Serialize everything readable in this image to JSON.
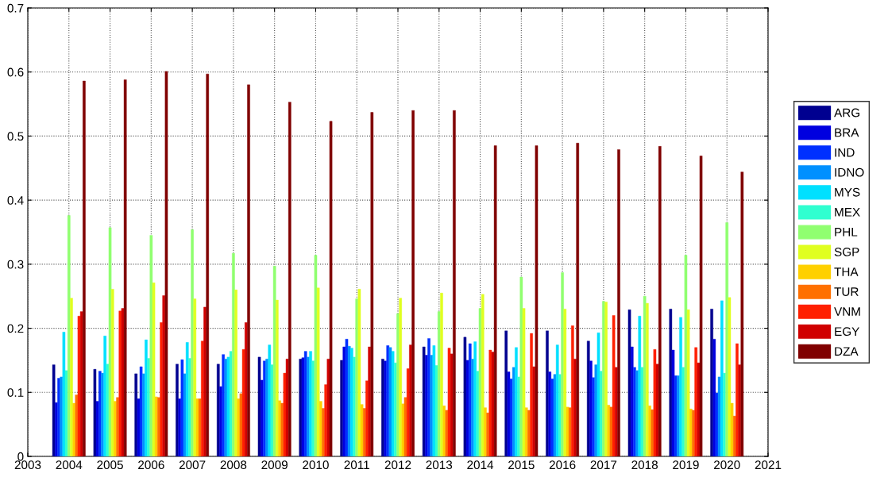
{
  "chart_data": {
    "type": "bar",
    "x": [
      2004,
      2005,
      2006,
      2007,
      2008,
      2009,
      2010,
      2011,
      2012,
      2013,
      2014,
      2015,
      2016,
      2017,
      2018,
      2019,
      2020
    ],
    "series": [
      {
        "name": "ARG",
        "color": "#000090",
        "values": [
          0.143,
          0.136,
          0.129,
          0.144,
          0.144,
          0.155,
          0.152,
          0.15,
          0.152,
          0.171,
          0.186,
          0.196,
          0.196,
          0.18,
          0.229,
          0.23,
          0.23
        ]
      },
      {
        "name": "BRA",
        "color": "#0000df",
        "values": [
          0.084,
          0.086,
          0.09,
          0.09,
          0.109,
          0.119,
          0.154,
          0.171,
          0.149,
          0.158,
          0.15,
          0.132,
          0.132,
          0.149,
          0.171,
          0.166,
          0.183
        ]
      },
      {
        "name": "IND",
        "color": "#0030ff",
        "values": [
          0.122,
          0.133,
          0.14,
          0.151,
          0.159,
          0.149,
          0.164,
          0.183,
          0.173,
          0.184,
          0.176,
          0.121,
          0.121,
          0.123,
          0.139,
          0.126,
          0.099
        ]
      },
      {
        "name": "IDNO",
        "color": "#0090ff",
        "values": [
          0.124,
          0.13,
          0.129,
          0.129,
          0.152,
          0.152,
          0.155,
          0.172,
          0.17,
          0.158,
          0.152,
          0.139,
          0.128,
          0.143,
          0.134,
          0.126,
          0.124
        ]
      },
      {
        "name": "MYS",
        "color": "#00e0ff",
        "values": [
          0.194,
          0.188,
          0.182,
          0.178,
          0.155,
          0.174,
          0.164,
          0.169,
          0.164,
          0.173,
          0.179,
          0.17,
          0.174,
          0.193,
          0.219,
          0.217,
          0.243
        ]
      },
      {
        "name": "MEX",
        "color": "#30ffd0",
        "values": [
          0.134,
          0.144,
          0.153,
          0.153,
          0.164,
          0.143,
          0.149,
          0.155,
          0.146,
          0.142,
          0.133,
          0.124,
          0.128,
          0.133,
          0.139,
          0.139,
          0.13
        ]
      },
      {
        "name": "PHL",
        "color": "#90ff70",
        "values": [
          0.376,
          0.357,
          0.345,
          0.354,
          0.317,
          0.297,
          0.314,
          0.246,
          0.223,
          0.226,
          0.231,
          0.28,
          0.287,
          0.242,
          0.25,
          0.314,
          0.365
        ]
      },
      {
        "name": "SGP",
        "color": "#e0ff20",
        "values": [
          0.247,
          0.261,
          0.271,
          0.246,
          0.26,
          0.244,
          0.263,
          0.261,
          0.247,
          0.255,
          0.253,
          0.231,
          0.23,
          0.241,
          0.239,
          0.229,
          0.248
        ]
      },
      {
        "name": "THA",
        "color": "#ffd000",
        "values": [
          0.083,
          0.086,
          0.093,
          0.09,
          0.09,
          0.087,
          0.086,
          0.081,
          0.082,
          0.079,
          0.076,
          0.076,
          0.077,
          0.08,
          0.079,
          0.074,
          0.083
        ]
      },
      {
        "name": "TUR",
        "color": "#ff7000",
        "values": [
          0.096,
          0.092,
          0.092,
          0.09,
          0.098,
          0.083,
          0.075,
          0.075,
          0.092,
          0.072,
          0.068,
          0.072,
          0.076,
          0.077,
          0.073,
          0.072,
          0.063
        ]
      },
      {
        "name": "VNM",
        "color": "#ff2000",
        "values": [
          0.219,
          0.227,
          0.209,
          0.18,
          0.167,
          0.13,
          0.112,
          0.118,
          0.137,
          0.169,
          0.166,
          0.192,
          0.204,
          0.22,
          0.167,
          0.17,
          0.176
        ]
      },
      {
        "name": "EGY",
        "color": "#d00000",
        "values": [
          0.226,
          0.231,
          0.251,
          0.233,
          0.209,
          0.152,
          0.152,
          0.171,
          0.174,
          0.16,
          0.163,
          0.14,
          0.152,
          0.139,
          0.144,
          0.146,
          0.143
        ]
      },
      {
        "name": "DZA",
        "color": "#800000",
        "values": [
          0.586,
          0.588,
          0.601,
          0.597,
          0.58,
          0.553,
          0.523,
          0.537,
          0.54,
          0.54,
          0.485,
          0.485,
          0.489,
          0.479,
          0.484,
          0.469,
          0.444
        ]
      }
    ],
    "xlim": [
      2003,
      2021
    ],
    "xticks": [
      2003,
      2004,
      2005,
      2006,
      2007,
      2008,
      2009,
      2010,
      2011,
      2012,
      2013,
      2014,
      2015,
      2016,
      2017,
      2018,
      2019,
      2020,
      2021
    ],
    "ylim": [
      0,
      0.7
    ],
    "yticks": [
      0,
      0.1,
      0.2,
      0.3,
      0.4,
      0.5,
      0.6,
      0.7
    ],
    "grid": true,
    "legend": "right"
  }
}
